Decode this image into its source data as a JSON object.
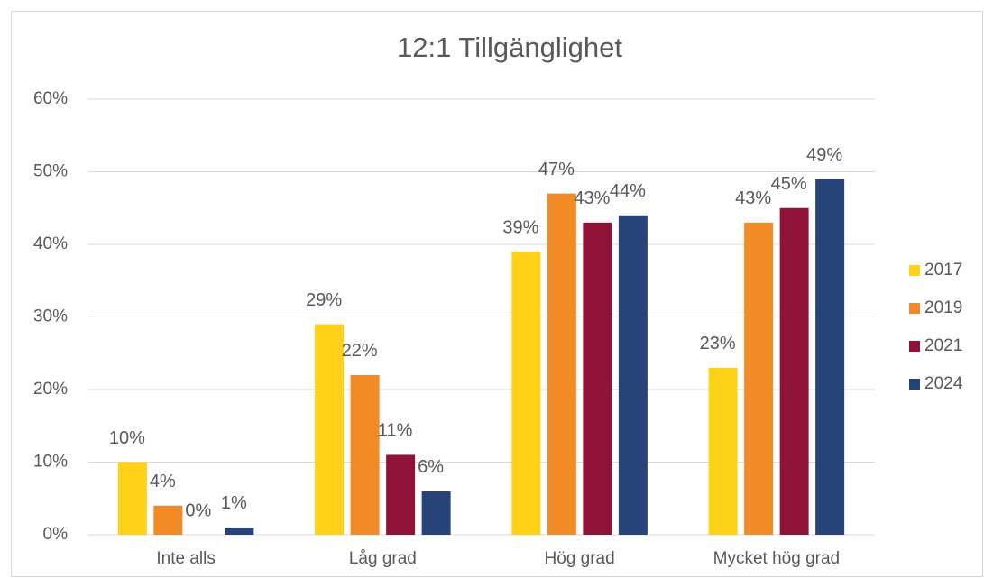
{
  "chart_data": {
    "type": "bar",
    "title": "12:1 Tillgänglighet",
    "categories": [
      "Inte alls",
      "Låg grad",
      "Hög grad",
      "Mycket hög grad"
    ],
    "series": [
      {
        "name": "2017",
        "color": "#FFD118",
        "values": [
          10,
          29,
          39,
          23
        ],
        "value_labels": [
          "10%",
          "29%",
          "39%",
          "23%"
        ]
      },
      {
        "name": "2019",
        "color": "#F28A25",
        "values": [
          4,
          22,
          47,
          43
        ],
        "value_labels": [
          "4%",
          "22%",
          "47%",
          "43%"
        ]
      },
      {
        "name": "2021",
        "color": "#8F1238",
        "values": [
          0,
          11,
          43,
          45
        ],
        "value_labels": [
          "0%",
          "11%",
          "43%",
          "45%"
        ]
      },
      {
        "name": "2024",
        "color": "#264478",
        "values": [
          1,
          6,
          44,
          49
        ],
        "value_labels": [
          "1%",
          "6%",
          "44%",
          "49%"
        ]
      }
    ],
    "ylim": [
      0,
      60
    ],
    "yticks": [
      {
        "value": 0,
        "label": "0%"
      },
      {
        "value": 10,
        "label": "10%"
      },
      {
        "value": 20,
        "label": "20%"
      },
      {
        "value": 30,
        "label": "30%"
      },
      {
        "value": 40,
        "label": "40%"
      },
      {
        "value": 50,
        "label": "50%"
      },
      {
        "value": 60,
        "label": "60%"
      }
    ],
    "grid": true,
    "legend": "right"
  }
}
